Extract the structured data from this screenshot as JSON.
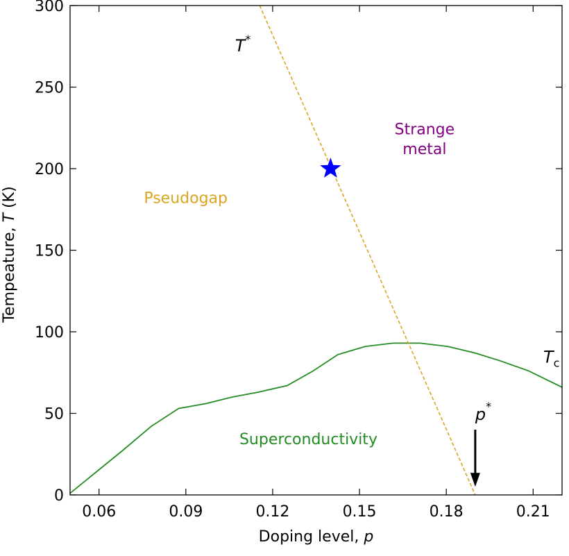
{
  "chart_data": {
    "type": "line",
    "xlabel_text": "Doping level, ",
    "xlabel_var": "p",
    "ylabel_text_pre": "Tempeature, ",
    "ylabel_var": "T",
    "ylabel_text_post": " (K)",
    "xlim": [
      0.05,
      0.22
    ],
    "ylim": [
      0,
      300
    ],
    "xticks": [
      0.06,
      0.09,
      0.12,
      0.15,
      0.18,
      0.21
    ],
    "xtick_labels": [
      "0.06",
      "0.09",
      "0.12",
      "0.15",
      "0.18",
      "0.21"
    ],
    "yticks": [
      0,
      50,
      100,
      150,
      200,
      250,
      300
    ],
    "ytick_labels": [
      "0",
      "50",
      "100",
      "150",
      "200",
      "250",
      "300"
    ],
    "grid": false,
    "series": [
      {
        "name": "T_c",
        "style": "solid",
        "color": "#228b22",
        "x": [
          0.05,
          0.068,
          0.078,
          0.0875,
          0.097,
          0.106,
          0.115,
          0.125,
          0.134,
          0.1425,
          0.152,
          0.1615,
          0.171,
          0.1805,
          0.19,
          0.199,
          0.2085,
          0.22
        ],
        "y": [
          1,
          27,
          42,
          53,
          56,
          60,
          63,
          67,
          76,
          86,
          91,
          93,
          93,
          91,
          87,
          82,
          76,
          66
        ]
      },
      {
        "name": "T*",
        "style": "dashed",
        "color": "#daa520",
        "x": [
          0.1155,
          0.19
        ],
        "y": [
          300,
          0
        ]
      }
    ],
    "markers": [
      {
        "shape": "star",
        "x": 0.14,
        "y": 200,
        "color": "#0000ff"
      }
    ],
    "arrow": {
      "x": 0.19,
      "y_from": 40,
      "y_to": 5,
      "color": "#000000"
    },
    "annotations": {
      "pseudogap": {
        "text": "Pseudogap",
        "x": 0.0755,
        "y": 179,
        "color": "#daa520"
      },
      "strange_metal_line1": {
        "text": "Strange",
        "x": 0.1725,
        "y": 221,
        "color": "#800080"
      },
      "strange_metal_line2": {
        "text": "metal",
        "x": 0.1725,
        "y": 209,
        "color": "#800080"
      },
      "superconductivity": {
        "text": "Superconductivity",
        "x": 0.1085,
        "y": 31,
        "color": "#228b22"
      },
      "t_star_base": {
        "text": "T",
        "sup": "*",
        "x": 0.107,
        "y": 272
      },
      "t_c_base": {
        "text": "T",
        "sub": "c",
        "x": 0.2135,
        "y": 81
      },
      "p_star_base": {
        "text": "p",
        "sup": "*",
        "x": 0.19,
        "y": 46
      }
    }
  }
}
